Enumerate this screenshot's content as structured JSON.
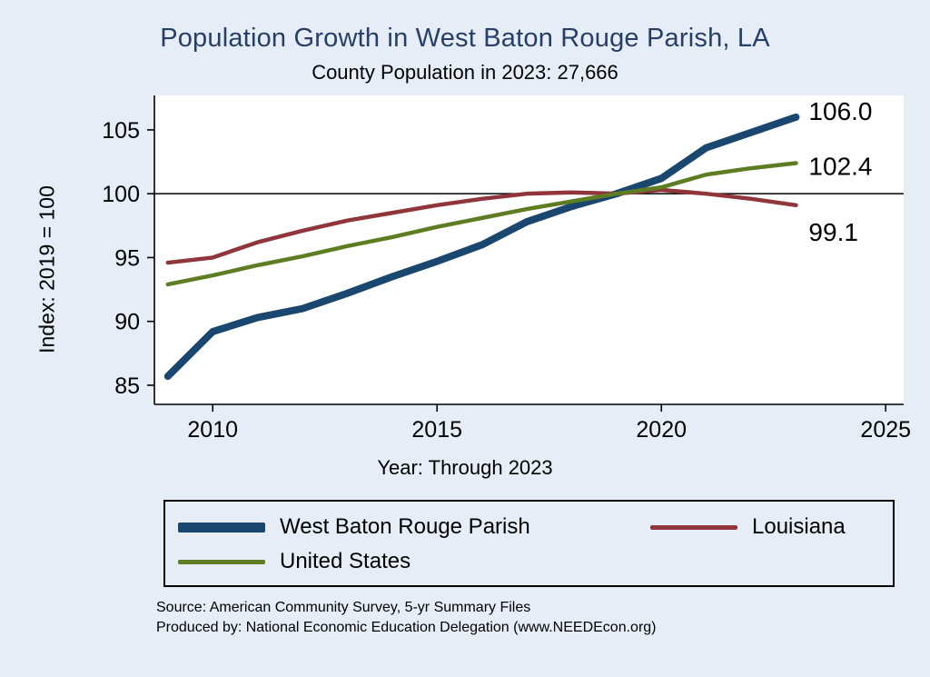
{
  "chart": {
    "title": "Population Growth in West Baton Rouge Parish, LA",
    "subtitle": "County Population in 2023: 27,666",
    "ylabel": "Index: 2019 = 100",
    "xlabel": "Year: Through 2023"
  },
  "chart_data": {
    "type": "line",
    "title": "Population Growth in West Baton Rouge Parish, LA",
    "subtitle": "County Population in 2023: 27,666",
    "xlabel": "Year: Through 2023",
    "ylabel": "Index: 2019 = 100",
    "x": [
      2009,
      2010,
      2011,
      2012,
      2013,
      2014,
      2015,
      2016,
      2017,
      2018,
      2019,
      2020,
      2021,
      2022,
      2023
    ],
    "series": [
      {
        "name": "West Baton Rouge Parish",
        "color": "#1a476f",
        "width": 8,
        "label_dy": -6,
        "end_label": "106.0",
        "values": [
          85.7,
          89.2,
          90.3,
          91.0,
          92.2,
          93.5,
          94.7,
          96.0,
          97.8,
          99.0,
          100.0,
          101.2,
          103.6,
          104.8,
          106.0
        ]
      },
      {
        "name": "Louisiana",
        "color": "#90353b",
        "width": 4.5,
        "label_dy": 30,
        "end_label": "99.1",
        "values": [
          94.6,
          95.0,
          96.2,
          97.1,
          97.9,
          98.5,
          99.1,
          99.6,
          100.0,
          100.1,
          100.0,
          100.3,
          100.0,
          99.6,
          99.1
        ]
      },
      {
        "name": "United States",
        "color": "#5e7d23",
        "width": 4.5,
        "label_dy": 4,
        "end_label": "102.4",
        "values": [
          92.9,
          93.6,
          94.4,
          95.1,
          95.9,
          96.6,
          97.4,
          98.1,
          98.8,
          99.4,
          100.0,
          100.5,
          101.5,
          102.0,
          102.4
        ]
      }
    ],
    "x_ticks": [
      2010,
      2015,
      2020,
      2025
    ],
    "y_ticks": [
      85,
      90,
      95,
      100,
      105
    ],
    "xlim": [
      2008.7,
      2025.4
    ],
    "ylim": [
      83.5,
      107.7
    ],
    "ref_line": 100,
    "grid": false,
    "legend_position": "bottom"
  },
  "legend": {
    "items": [
      {
        "label": "West Baton Rouge Parish",
        "color": "#1a476f",
        "thick": true
      },
      {
        "label": "Louisiana",
        "color": "#90353b",
        "thick": false
      },
      {
        "label": "United States",
        "color": "#5e7d23",
        "thick": false
      }
    ]
  },
  "footer": {
    "source_line1": "Source: American Community Survey, 5-yr Summary Files",
    "source_line2": "Produced by: National Economic Education Delegation (www.NEEDEcon.org)"
  },
  "colors": {
    "background": "#e6edf6",
    "title": "#253f6a",
    "plot_background": "#ffffff",
    "axis": "#000000"
  }
}
